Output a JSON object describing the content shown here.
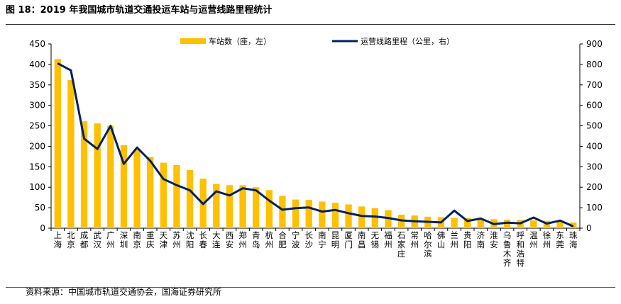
{
  "figure": {
    "title": "图 18：2019 年我国城市轨道交通投运车站与运营线路里程统计",
    "source": "资料来源：中国城市轨道交通协会，国海证券研究所"
  },
  "chart_data": {
    "type": "bar",
    "categories": [
      "上海",
      "北京",
      "成都",
      "武汉",
      "广州",
      "深圳",
      "南京",
      "重庆",
      "天津",
      "苏州",
      "沈阳",
      "长春",
      "大连",
      "西安",
      "郑州",
      "青岛",
      "杭州",
      "合肥",
      "宁波",
      "长沙",
      "南宁",
      "昆明",
      "厦门",
      "南昌",
      "无锡",
      "福州",
      "石家庄",
      "常州",
      "哈尔滨",
      "佛山",
      "兰州",
      "贵阳",
      "济南",
      "淮安",
      "乌鲁木齐",
      "呼和浩特",
      "温州",
      "徐州",
      "东莞",
      "珠海"
    ],
    "series": [
      {
        "name": "车站数（座，左）",
        "type": "bar",
        "axis": "left",
        "color": "#FFC000",
        "values": [
          413,
          362,
          261,
          256,
          250,
          203,
          194,
          174,
          160,
          154,
          142,
          121,
          108,
          105,
          105,
          100,
          93,
          79,
          70,
          69,
          65,
          62,
          58,
          53,
          49,
          44,
          33,
          31,
          28,
          27,
          25,
          25,
          22,
          22,
          21,
          20,
          19,
          18,
          18,
          14
        ]
      },
      {
        "name": "运营线路里程（公里，右）",
        "type": "line",
        "axis": "right",
        "color": "#002060",
        "values": [
          805,
          771,
          437,
          387,
          500,
          314,
          394,
          329,
          240,
          210,
          185,
          118,
          180,
          160,
          195,
          185,
          135,
          90,
          98,
          101,
          81,
          89,
          73,
          60,
          57,
          50,
          38,
          34,
          31,
          28,
          86,
          35,
          47,
          20,
          27,
          24,
          52,
          22,
          37,
          9
        ]
      }
    ],
    "y_left": {
      "min": 0,
      "max": 450,
      "ticks": [
        0,
        50,
        100,
        150,
        200,
        250,
        300,
        350,
        400,
        450
      ]
    },
    "y_right": {
      "min": 0,
      "max": 900,
      "ticks": [
        0,
        100,
        200,
        300,
        400,
        500,
        600,
        700,
        800,
        900
      ]
    },
    "legend_position": "top",
    "grid": false
  }
}
